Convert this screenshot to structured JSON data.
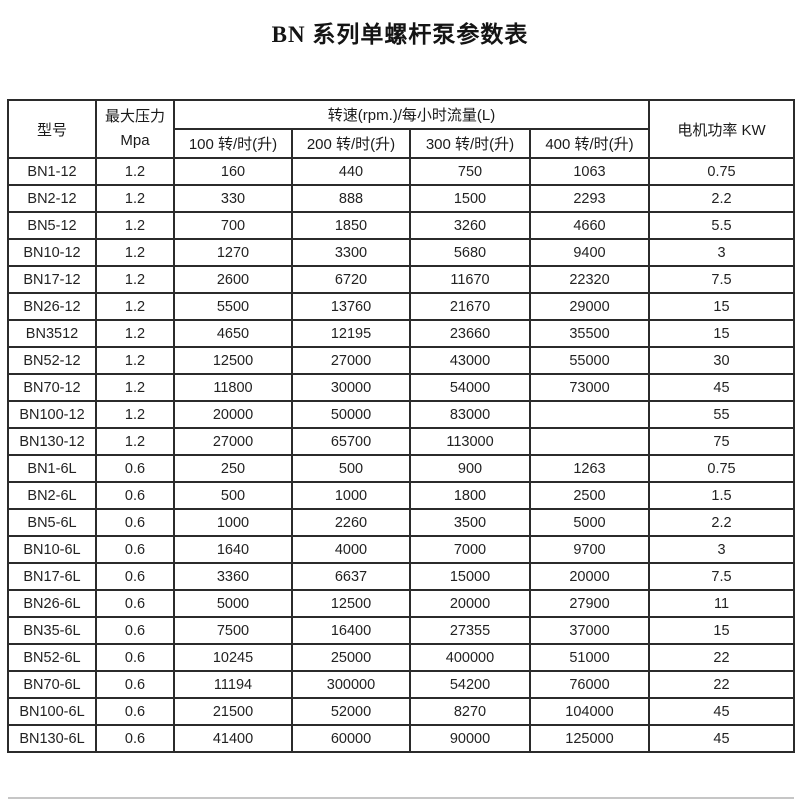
{
  "title": "BN 系列单螺杆泵参数表",
  "table": {
    "headers": {
      "model": "型号",
      "pressure_line1": "最大压力",
      "pressure_line2": "Mpa",
      "speed_group": "转速(rpm.)/每小时流量(L)",
      "speed_cols": [
        "100 转/时(升)",
        "200 转/时(升)",
        "300 转/时(升)",
        "400 转/时(升)"
      ],
      "power": "电机功率 KW"
    },
    "rows": [
      [
        "BN1-12",
        "1.2",
        "160",
        "440",
        "750",
        "1063",
        "0.75"
      ],
      [
        "BN2-12",
        "1.2",
        "330",
        "888",
        "1500",
        "2293",
        "2.2"
      ],
      [
        "BN5-12",
        "1.2",
        "700",
        "1850",
        "3260",
        "4660",
        "5.5"
      ],
      [
        "BN10-12",
        "1.2",
        "1270",
        "3300",
        "5680",
        "9400",
        "3"
      ],
      [
        "BN17-12",
        "1.2",
        "2600",
        "6720",
        "11670",
        "22320",
        "7.5"
      ],
      [
        "BN26-12",
        "1.2",
        "5500",
        "13760",
        "21670",
        "29000",
        "15"
      ],
      [
        "BN3512",
        "1.2",
        "4650",
        "12195",
        "23660",
        "35500",
        "15"
      ],
      [
        "BN52-12",
        "1.2",
        "12500",
        "27000",
        "43000",
        "55000",
        "30"
      ],
      [
        "BN70-12",
        "1.2",
        "11800",
        "30000",
        "54000",
        "73000",
        "45"
      ],
      [
        "BN100-12",
        "1.2",
        "20000",
        "50000",
        "83000",
        "",
        "55"
      ],
      [
        "BN130-12",
        "1.2",
        "27000",
        "65700",
        "113000",
        "",
        "75"
      ],
      [
        "BN1-6L",
        "0.6",
        "250",
        "500",
        "900",
        "1263",
        "0.75"
      ],
      [
        "BN2-6L",
        "0.6",
        "500",
        "1000",
        "1800",
        "2500",
        "1.5"
      ],
      [
        "BN5-6L",
        "0.6",
        "1000",
        "2260",
        "3500",
        "5000",
        "2.2"
      ],
      [
        "BN10-6L",
        "0.6",
        "1640",
        "4000",
        "7000",
        "9700",
        "3"
      ],
      [
        "BN17-6L",
        "0.6",
        "3360",
        "6637",
        "15000",
        "20000",
        "7.5"
      ],
      [
        "BN26-6L",
        "0.6",
        "5000",
        "12500",
        "20000",
        "27900",
        "11"
      ],
      [
        "BN35-6L",
        "0.6",
        "7500",
        "16400",
        "27355",
        "37000",
        "15"
      ],
      [
        "BN52-6L",
        "0.6",
        "10245",
        "25000",
        "400000",
        "51000",
        "22"
      ],
      [
        "BN70-6L",
        "0.6",
        "11194",
        "300000",
        "54200",
        "76000",
        "22"
      ],
      [
        "BN100-6L",
        "0.6",
        "21500",
        "52000",
        "8270",
        "104000",
        "45"
      ],
      [
        "BN130-6L",
        "0.6",
        "41400",
        "60000",
        "90000",
        "125000",
        "45"
      ]
    ]
  }
}
